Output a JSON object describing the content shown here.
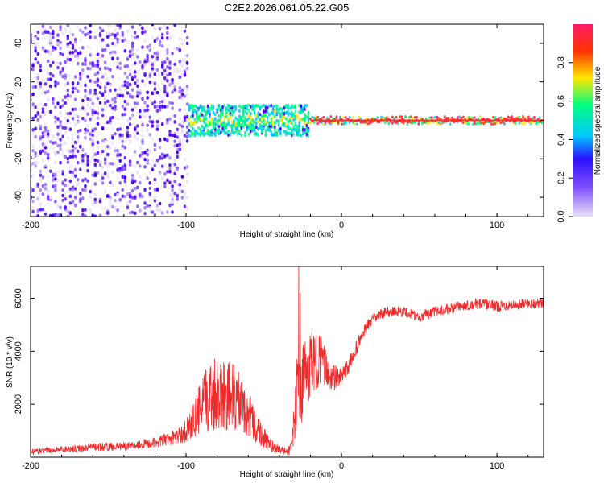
{
  "chart_data": [
    {
      "type": "heatmap",
      "title": "C2E2.2026.061.05.22.G05",
      "xlabel": "Height of straight line (km)",
      "ylabel": "Frequency (Hz)",
      "xlim": [
        -200,
        130
      ],
      "ylim": [
        -50,
        50
      ],
      "x_ticks": [
        -200,
        -100,
        0,
        100
      ],
      "y_ticks": [
        -40,
        -20,
        0,
        20,
        40
      ],
      "colorbar": {
        "label": "Normalized spectral amplitude",
        "range": [
          0,
          1
        ],
        "ticks": [
          0.0,
          0.2,
          0.4,
          0.6,
          0.8
        ],
        "tick_labels": [
          "0.0",
          "0.2",
          "0.4",
          "0.6",
          "0.8"
        ],
        "colors": [
          "#e8e0f8",
          "#4b00ff",
          "#00c8ff",
          "#00ff80",
          "#ffe600",
          "#ff3300",
          "#ff1a66"
        ]
      },
      "description_bands": [
        {
          "x_range": [
            -200,
            -98
          ],
          "freq_spread": 50,
          "amplitude": 0.12
        },
        {
          "x_range": [
            -98,
            -20
          ],
          "freq_spread": 8,
          "amplitude": 0.45
        },
        {
          "x_range": [
            -20,
            130
          ],
          "freq_spread": 2,
          "amplitude": 0.85
        }
      ]
    },
    {
      "type": "line",
      "xlabel": "Height of straight line (km)",
      "ylabel": "SNR (10 * v/v)",
      "xlim": [
        -200,
        130
      ],
      "ylim": [
        0,
        7200
      ],
      "x_ticks": [
        -200,
        -100,
        0,
        100
      ],
      "y_ticks": [
        2000,
        4000,
        6000
      ],
      "series": [
        {
          "name": "SNR",
          "color": "#ee2b2b",
          "x": [
            -200,
            -180,
            -160,
            -140,
            -120,
            -105,
            -100,
            -95,
            -90,
            -85,
            -80,
            -75,
            -70,
            -65,
            -60,
            -55,
            -50,
            -45,
            -40,
            -35,
            -32,
            -30,
            -28,
            -26,
            -24,
            -22,
            -20,
            -17,
            -14,
            -10,
            -5,
            0,
            5,
            10,
            15,
            20,
            25,
            30,
            40,
            50,
            60,
            70,
            80,
            90,
            100,
            110,
            120,
            130
          ],
          "y": [
            200,
            300,
            380,
            420,
            550,
            800,
            1000,
            1400,
            1900,
            2300,
            2500,
            2400,
            2300,
            2000,
            1600,
            1200,
            700,
            400,
            300,
            200,
            400,
            1500,
            3000,
            2200,
            3400,
            3000,
            3600,
            3500,
            3800,
            3300,
            3000,
            3000,
            3500,
            4200,
            4800,
            5200,
            5400,
            5500,
            5500,
            5300,
            5500,
            5600,
            5750,
            5800,
            5700,
            5750,
            5800,
            5800
          ],
          "noise": [
            100,
            120,
            150,
            150,
            200,
            300,
            450,
            700,
            1100,
            1400,
            1500,
            1400,
            1300,
            1100,
            900,
            700,
            450,
            250,
            150,
            150,
            300,
            900,
            1400,
            1400,
            1200,
            1300,
            1200,
            1100,
            1000,
            700,
            500,
            350,
            300,
            300,
            250,
            200,
            200,
            200,
            200,
            200,
            200,
            200,
            200,
            200,
            200,
            200,
            200,
            200
          ],
          "spikes": [
            {
              "x": -27.5,
              "y": 7200
            },
            {
              "x": -26.5,
              "y": 6200
            }
          ]
        }
      ]
    }
  ]
}
